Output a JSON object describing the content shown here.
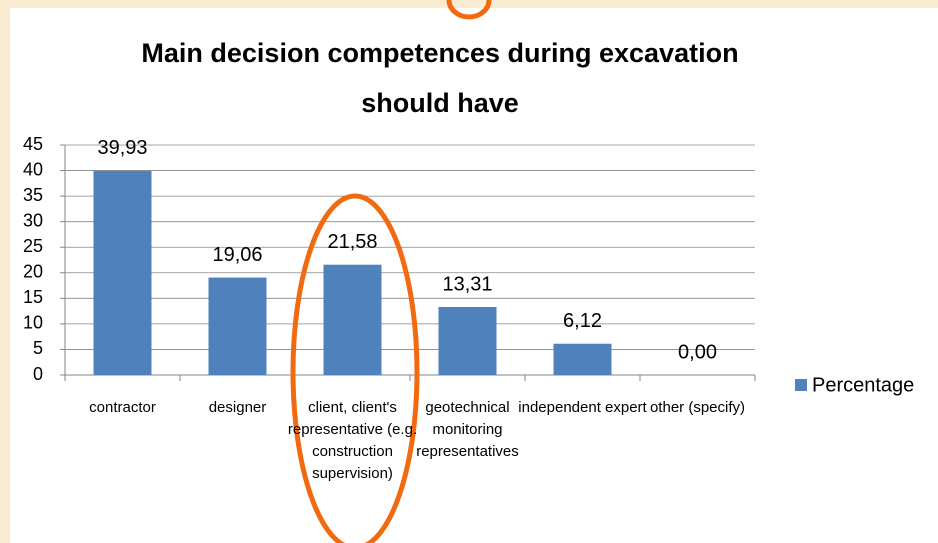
{
  "chart_data": {
    "type": "bar",
    "title": "Main decision competences during excavation should have",
    "categories": [
      "contractor",
      "designer",
      "client, client's representative (e.g. construction supervision)",
      "geotechnical monitoring representatives",
      "independent expert",
      "other (specify)"
    ],
    "series": [
      {
        "name": "Percentage",
        "color": "#4f81bd",
        "values": [
          39.93,
          19.06,
          21.58,
          13.31,
          6.12,
          0
        ],
        "value_labels": [
          "39,93",
          "19,06",
          "21,58",
          "13,31",
          "6,12",
          "0,00"
        ]
      }
    ],
    "ylim": [
      0,
      45
    ],
    "yticks": [
      0,
      5,
      10,
      15,
      20,
      25,
      30,
      35,
      40,
      45
    ],
    "grid": true,
    "legend": "right"
  }
}
